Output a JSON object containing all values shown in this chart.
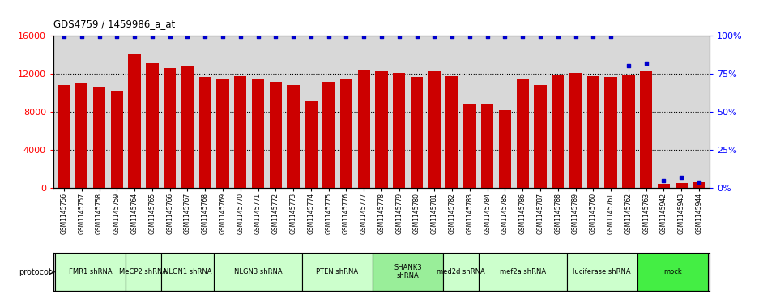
{
  "title": "GDS4759 / 1459986_a_at",
  "samples": [
    "GSM1145756",
    "GSM1145757",
    "GSM1145758",
    "GSM1145759",
    "GSM1145764",
    "GSM1145765",
    "GSM1145766",
    "GSM1145767",
    "GSM1145768",
    "GSM1145769",
    "GSM1145770",
    "GSM1145771",
    "GSM1145772",
    "GSM1145773",
    "GSM1145774",
    "GSM1145775",
    "GSM1145776",
    "GSM1145777",
    "GSM1145778",
    "GSM1145779",
    "GSM1145780",
    "GSM1145781",
    "GSM1145782",
    "GSM1145783",
    "GSM1145784",
    "GSM1145785",
    "GSM1145786",
    "GSM1145787",
    "GSM1145788",
    "GSM1145789",
    "GSM1145760",
    "GSM1145761",
    "GSM1145762",
    "GSM1145763",
    "GSM1145942",
    "GSM1145943",
    "GSM1145944"
  ],
  "counts": [
    10800,
    10950,
    10550,
    10200,
    14000,
    13100,
    12600,
    12800,
    11650,
    11500,
    11700,
    11500,
    11100,
    10750,
    9100,
    11100,
    11500,
    12300,
    12200,
    12100,
    11600,
    12200,
    11700,
    8800,
    8800,
    8200,
    11400,
    10800,
    11900,
    12100,
    11700,
    11600,
    11800,
    12200,
    450,
    500,
    600
  ],
  "percentiles": [
    99,
    99,
    99,
    99,
    99,
    99,
    99,
    99,
    99,
    99,
    99,
    99,
    99,
    99,
    99,
    99,
    99,
    99,
    99,
    99,
    99,
    99,
    99,
    99,
    99,
    99,
    99,
    99,
    99,
    99,
    99,
    99,
    80,
    82,
    5,
    7,
    4
  ],
  "groups": [
    {
      "label": "FMR1 shRNA",
      "start": 0,
      "end": 4,
      "color": "#ccffcc"
    },
    {
      "label": "MeCP2 shRNA",
      "start": 4,
      "end": 6,
      "color": "#ccffcc"
    },
    {
      "label": "NLGN1 shRNA",
      "start": 6,
      "end": 9,
      "color": "#ccffcc"
    },
    {
      "label": "NLGN3 shRNA",
      "start": 9,
      "end": 14,
      "color": "#ccffcc"
    },
    {
      "label": "PTEN shRNA",
      "start": 14,
      "end": 18,
      "color": "#ccffcc"
    },
    {
      "label": "SHANK3\nshRNA",
      "start": 18,
      "end": 22,
      "color": "#99ee99"
    },
    {
      "label": "med2d shRNA",
      "start": 22,
      "end": 24,
      "color": "#ccffcc"
    },
    {
      "label": "mef2a shRNA",
      "start": 24,
      "end": 29,
      "color": "#ccffcc"
    },
    {
      "label": "luciferase shRNA",
      "start": 29,
      "end": 33,
      "color": "#ccffcc"
    },
    {
      "label": "mock",
      "start": 33,
      "end": 37,
      "color": "#44ee44"
    }
  ],
  "bar_color": "#cc0000",
  "dot_color": "#0000cc",
  "ylim_left": [
    0,
    16000
  ],
  "ylim_right": [
    0,
    100
  ],
  "yticks_left": [
    0,
    4000,
    8000,
    12000,
    16000
  ],
  "yticks_right": [
    0,
    25,
    50,
    75,
    100
  ],
  "bg_color": "#d8d8d8",
  "proto_bg": "#d0d0d0"
}
